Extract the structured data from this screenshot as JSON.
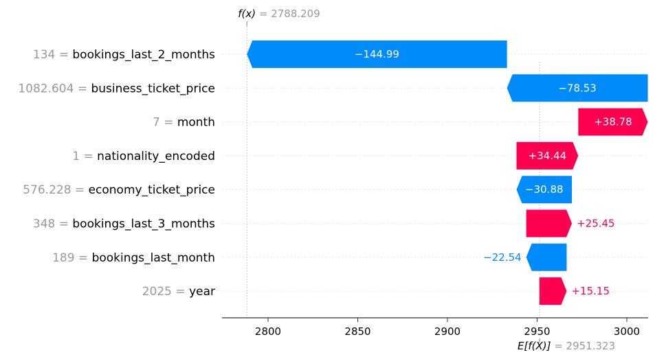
{
  "chart_data": {
    "type": "waterfall",
    "fx_label": "f(x)",
    "fx_value": "2788.209",
    "ex_label": "E[f(X)]",
    "ex_value": "2951.323",
    "base_value": 2951.323,
    "final_value": 2788.209,
    "xlim": [
      2775,
      3013
    ],
    "xticks": [
      2800,
      2850,
      2900,
      2950,
      3000
    ],
    "features": [
      {
        "value": "134",
        "name": "bookings_last_2_months",
        "shap": -144.99,
        "label": "−144.99"
      },
      {
        "value": "1082.604",
        "name": "business_ticket_price",
        "shap": -78.53,
        "label": "−78.53"
      },
      {
        "value": "7",
        "name": "month",
        "shap": 38.78,
        "label": "+38.78"
      },
      {
        "value": "1",
        "name": "nationality_encoded",
        "shap": 34.44,
        "label": "+34.44"
      },
      {
        "value": "576.228",
        "name": "economy_ticket_price",
        "shap": -30.88,
        "label": "−30.88"
      },
      {
        "value": "348",
        "name": "bookings_last_3_months",
        "shap": 25.45,
        "label": "+25.45"
      },
      {
        "value": "189",
        "name": "bookings_last_month",
        "shap": -22.54,
        "label": "−22.54"
      },
      {
        "value": "2025",
        "name": "year",
        "shap": 15.15,
        "label": "+15.15"
      }
    ],
    "colors": {
      "positive": "#ff0051",
      "negative": "#008bfb",
      "muted": "#999999"
    }
  }
}
